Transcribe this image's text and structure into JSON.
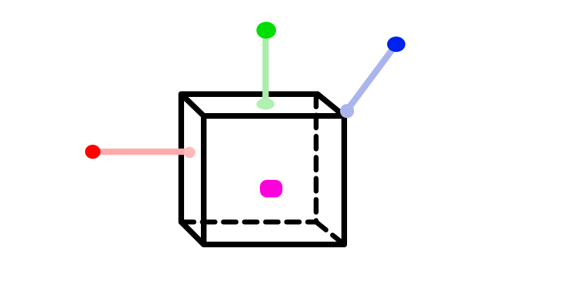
{
  "diagram": {
    "type": "3d-cube-gizmo",
    "colors": {
      "background": "#ffffff",
      "cube_edges": "#000000",
      "x_handle": "#ff0000",
      "x_handle_stem": "#ffaaaa",
      "y_handle": "#00dd00",
      "y_handle_stem": "#aaeeaa",
      "z_handle": "#0022ee",
      "z_handle_stem": "#aab5ee",
      "center_marker": "#ff00dd"
    },
    "handles": [
      {
        "axis": "x",
        "color_key": "x_handle"
      },
      {
        "axis": "y",
        "color_key": "y_handle"
      },
      {
        "axis": "z",
        "color_key": "z_handle"
      }
    ],
    "center": {
      "color_key": "center_marker"
    }
  }
}
